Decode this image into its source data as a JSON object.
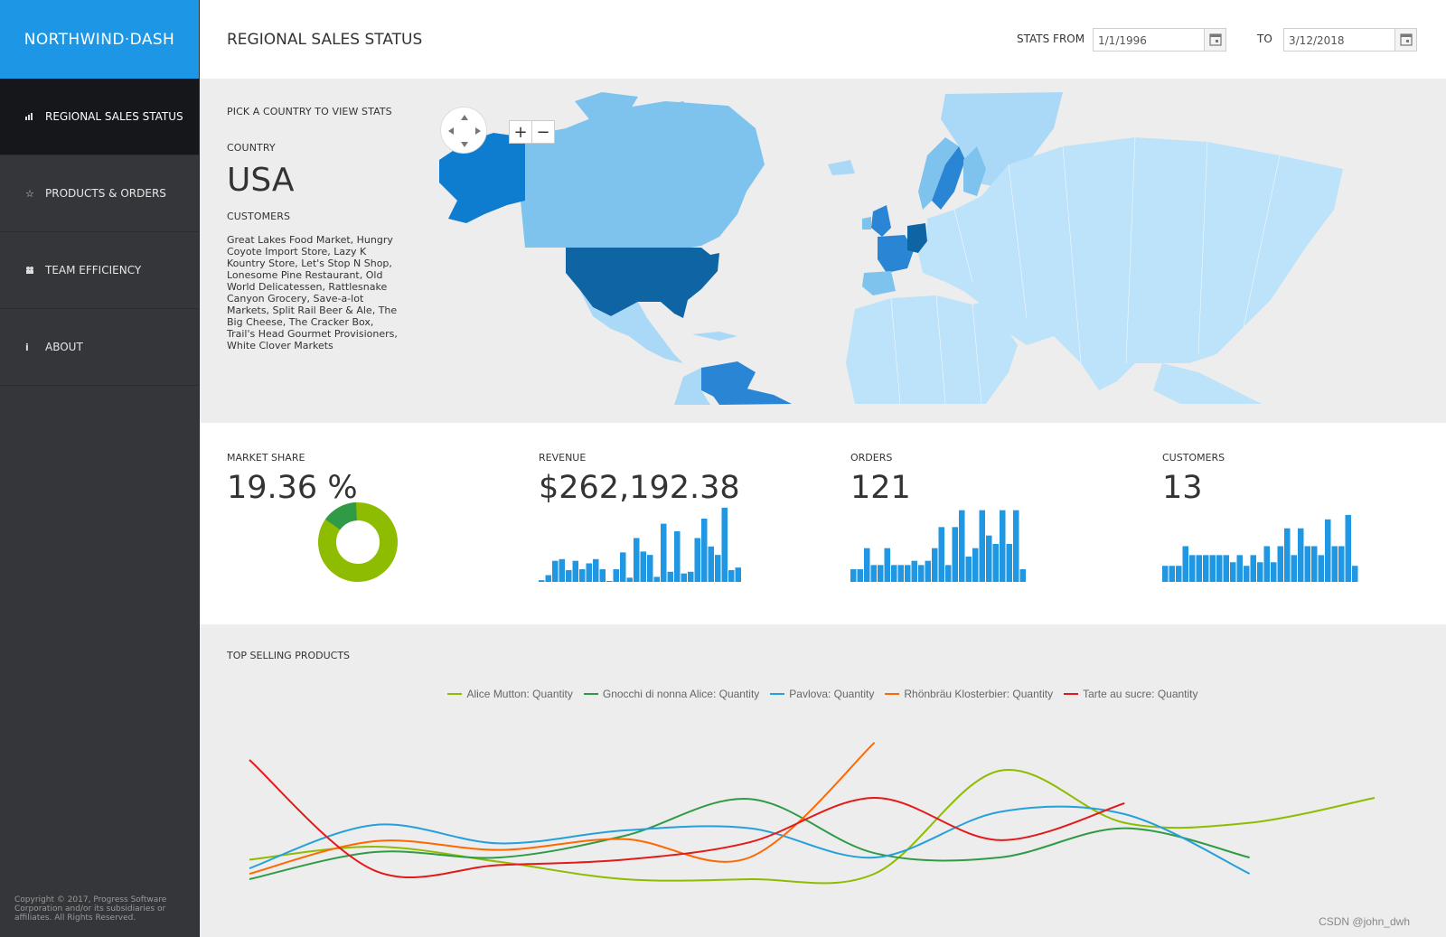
{
  "app": {
    "brand": "NORTHWIND·DASH",
    "page_title": "REGIONAL SALES STATUS",
    "copyright": "Copyright © 2017, Progress Software Corporation and/or its subsidiaries or affiliates. All Rights Reserved.",
    "watermark": "CSDN @john_dwh"
  },
  "sidebar": {
    "items": [
      {
        "label": "REGIONAL SALES STATUS",
        "icon": "bar-chart-icon",
        "active": true
      },
      {
        "label": "PRODUCTS & ORDERS",
        "icon": "star-icon",
        "active": false
      },
      {
        "label": "TEAM EFFICIENCY",
        "icon": "team-icon",
        "active": false
      },
      {
        "label": "ABOUT",
        "icon": "info-icon",
        "active": false
      }
    ]
  },
  "header": {
    "stats_from_label": "STATS FROM",
    "stats_from_value": "1/1/1996",
    "to_label": "TO",
    "to_value": "3/12/2018"
  },
  "map": {
    "pick_label": "PICK A COUNTRY TO VIEW STATS",
    "country_label": "COUNTRY",
    "country": "USA",
    "customers_label": "CUSTOMERS",
    "customers": "Great Lakes Food Market, Hungry Coyote Import Store, Lazy K Kountry Store, Let's Stop N Shop, Lonesome Pine Restaurant, Old World Delicatessen, Rattlesnake Canyon Grocery, Save-a-lot Markets, Split Rail Beer & Ale, The Big Cheese, The Cracker Box, Trail's Head Gourmet Provisioners, White Clover Markets",
    "zoom_in": "+",
    "zoom_out": "−",
    "colors": {
      "selected": "#0f64a4",
      "high": "#2a86d4",
      "mid": "#7ec3ee",
      "low": "#aad9f7",
      "base": "#bde3fa"
    }
  },
  "stats": {
    "market_share": {
      "label": "MARKET SHARE",
      "value": "19.36 %",
      "share": 0.1936,
      "colors": [
        "#8ebc00",
        "#309b46"
      ]
    },
    "revenue": {
      "label": "REVENUE",
      "value": "$262,192.38",
      "bars": [
        2,
        8,
        25,
        27,
        14,
        25,
        15,
        22,
        27,
        15,
        1,
        15,
        35,
        5,
        52,
        36,
        32,
        6,
        69,
        12,
        60,
        10,
        12,
        52,
        75,
        42,
        32,
        88,
        14,
        17
      ]
    },
    "orders": {
      "label": "ORDERS",
      "value": "121",
      "bars": [
        15,
        15,
        40,
        20,
        20,
        40,
        20,
        20,
        20,
        25,
        20,
        25,
        40,
        65,
        20,
        65,
        85,
        30,
        40,
        85,
        55,
        45,
        85,
        45,
        85,
        15
      ]
    },
    "customers": {
      "label": "CUSTOMERS",
      "value": "13",
      "bars": [
        18,
        18,
        18,
        40,
        30,
        30,
        30,
        30,
        30,
        30,
        22,
        30,
        18,
        30,
        22,
        40,
        22,
        40,
        60,
        30,
        60,
        40,
        40,
        30,
        70,
        40,
        40,
        75,
        18
      ]
    },
    "bar_color": "#1f97e3"
  },
  "products": {
    "title": "TOP SELLING PRODUCTS",
    "series": [
      {
        "name": "Alice Mutton: Quantity",
        "color": "#8ebc00",
        "values": [
          18,
          30,
          16,
          0,
          0,
          5,
          100,
          52,
          52,
          75
        ]
      },
      {
        "name": "Gnocchi di nonna Alice: Quantity",
        "color": "#309b46",
        "values": [
          0,
          25,
          20,
          40,
          74,
          24,
          20,
          47,
          20,
          null
        ]
      },
      {
        "name": "Pavlova: Quantity",
        "color": "#25a0da",
        "values": [
          10,
          50,
          33,
          45,
          47,
          20,
          62,
          60,
          5,
          null
        ]
      },
      {
        "name": "Rhönbräu Klosterbier: Quantity",
        "color": "#ff6800",
        "values": [
          5,
          35,
          27,
          37,
          20,
          126,
          null,
          null,
          null,
          null
        ]
      },
      {
        "name": "Tarte au sucre: Quantity",
        "color": "#e31a1c",
        "values": [
          110,
          8,
          13,
          18,
          34,
          75,
          36,
          70,
          null,
          null
        ]
      }
    ]
  }
}
